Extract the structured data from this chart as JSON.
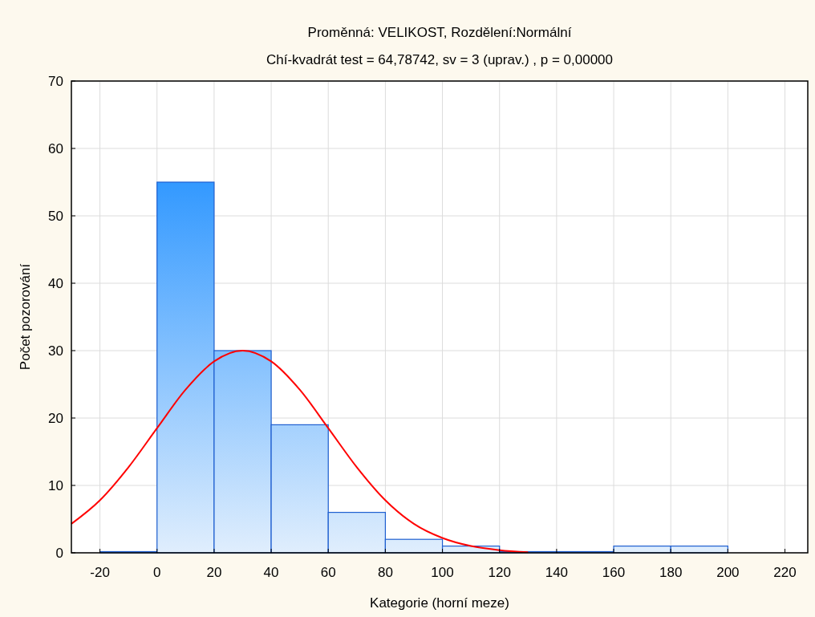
{
  "chart_data": {
    "type": "histogram",
    "title": "Proměnná: VELIKOST, Rozdělení:Normální",
    "subtitle": "Chí-kvadrát test = 64,78742, sv = 3 (uprav.) , p = 0,00000",
    "xlabel": "Kategorie (horní meze)",
    "ylabel": "Počet pozorování",
    "bins": [
      -20,
      0,
      20,
      40,
      60,
      80,
      100,
      120,
      140,
      160,
      180,
      200
    ],
    "values": [
      0,
      55,
      30,
      19,
      6,
      2,
      1,
      0,
      0,
      1,
      1
    ],
    "color": "#1f5fd0",
    "series": [
      {
        "type": "line",
        "color": "#ff0000",
        "x": [
          -30,
          -20,
          -10,
          0,
          10,
          20,
          30,
          40,
          50,
          60,
          70,
          80,
          90,
          100,
          110,
          120,
          130
        ],
        "values": [
          4.3,
          7.8,
          12.7,
          18.5,
          24.2,
          28.4,
          30,
          28.4,
          24.2,
          18.5,
          12.7,
          7.8,
          4.3,
          2.2,
          1,
          0.4,
          0.1
        ]
      }
    ],
    "xlim": [
      -30,
      228
    ],
    "xticks": [
      -20,
      0,
      20,
      40,
      60,
      80,
      100,
      120,
      140,
      160,
      180,
      200,
      220
    ],
    "ylim": [
      0,
      70
    ],
    "yticks": [
      0,
      10,
      20,
      30,
      40,
      50,
      60,
      70
    ],
    "grid": true
  }
}
